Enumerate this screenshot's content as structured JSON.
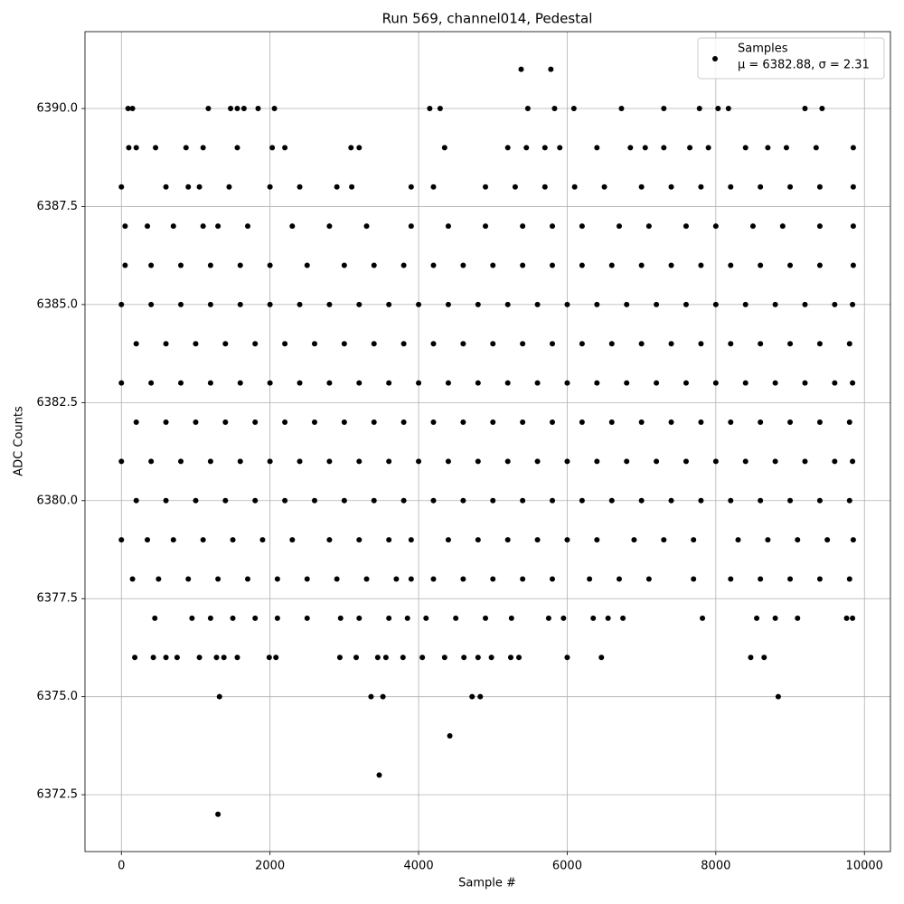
{
  "chart_data": {
    "type": "scatter",
    "title": "Run 569, channel014, Pedestal",
    "xlabel": "Sample #",
    "ylabel": "ADC Counts",
    "xlim": [
      -490,
      10350
    ],
    "ylim": [
      6371.05,
      6391.96
    ],
    "xticks": [
      0,
      2000,
      4000,
      6000,
      8000,
      10000
    ],
    "yticks": [
      6372.5,
      {
        "value": 6375,
        "label": "6375.0"
      },
      6377.5,
      {
        "value": 6380,
        "label": "6380.0"
      },
      6382.5,
      {
        "value": 6385,
        "label": "6385.0"
      },
      6387.5,
      {
        "value": 6390,
        "label": "6390.0"
      }
    ],
    "grid": true,
    "legend": "upper right",
    "legend_note": "μ = 6382.88, σ = 2.31",
    "series": [
      {
        "name": "Samples",
        "color": "#000000",
        "x": [
          5380,
          5780,
          90,
          150,
          1170,
          1470,
          1560,
          1650,
          1840,
          2060,
          4150,
          4290,
          5470,
          5830,
          6090,
          6730,
          7300,
          7780,
          8030,
          8170,
          9200,
          9430,
          100,
          200,
          460,
          870,
          1100,
          1560,
          2030,
          2200,
          3090,
          3200,
          4350,
          5200,
          5450,
          5700,
          5900,
          6400,
          6850,
          7050,
          7300,
          7650,
          7900,
          8400,
          8700,
          8950,
          9350,
          9850,
          0,
          600,
          900,
          1050,
          1450,
          2000,
          2400,
          2900,
          3100,
          3900,
          4200,
          4900,
          5300,
          5700,
          6100,
          6500,
          7000,
          7400,
          7800,
          8200,
          8600,
          9000,
          9400,
          9850,
          50,
          350,
          700,
          1100,
          1300,
          1700,
          2300,
          2800,
          3300,
          3900,
          4400,
          4900,
          5400,
          5800,
          6200,
          6700,
          7100,
          7600,
          8000,
          8500,
          8900,
          9400,
          9850,
          50,
          400,
          800,
          1200,
          1600,
          2000,
          2500,
          3000,
          3400,
          3800,
          4200,
          4600,
          5000,
          5400,
          5800,
          6200,
          6600,
          7000,
          7400,
          7800,
          8200,
          8600,
          9000,
          9400,
          9850,
          0,
          400,
          800,
          1200,
          1600,
          2000,
          2400,
          2800,
          3200,
          3600,
          4000,
          4400,
          4800,
          5200,
          5600,
          6000,
          6400,
          6800,
          7200,
          7600,
          8000,
          8400,
          8800,
          9200,
          9600,
          9840,
          200,
          600,
          1000,
          1400,
          1800,
          2200,
          2600,
          3000,
          3400,
          3800,
          4200,
          4600,
          5000,
          5400,
          5800,
          6200,
          6600,
          7000,
          7400,
          7800,
          8200,
          8600,
          9000,
          9400,
          9800,
          0,
          400,
          800,
          1200,
          1600,
          2000,
          2400,
          2800,
          3200,
          3600,
          4000,
          4400,
          4800,
          5200,
          5600,
          6000,
          6400,
          6800,
          7200,
          7600,
          8000,
          8400,
          8800,
          9200,
          9600,
          9840,
          200,
          600,
          1000,
          1400,
          1800,
          2200,
          2600,
          3000,
          3400,
          3800,
          4200,
          4600,
          5000,
          5400,
          5800,
          6200,
          6600,
          7000,
          7400,
          7800,
          8200,
          8600,
          9000,
          9400,
          9800,
          0,
          400,
          800,
          1200,
          1600,
          2000,
          2400,
          2800,
          3200,
          3600,
          4000,
          4400,
          4800,
          5200,
          5600,
          6000,
          6400,
          6800,
          7200,
          7600,
          8000,
          8400,
          8800,
          9200,
          9600,
          9840,
          200,
          600,
          1000,
          1400,
          1800,
          2200,
          2600,
          3000,
          3400,
          3800,
          4200,
          4600,
          5000,
          5400,
          5800,
          6200,
          6600,
          7000,
          7400,
          7800,
          8200,
          8600,
          9000,
          9400,
          9800,
          0,
          350,
          700,
          1100,
          1500,
          1900,
          2300,
          2800,
          3200,
          3600,
          3900,
          4400,
          4800,
          5200,
          5600,
          6000,
          6400,
          6900,
          7300,
          7700,
          8300,
          8700,
          9100,
          9500,
          9850,
          150,
          500,
          900,
          1300,
          1700,
          2100,
          2500,
          2900,
          3300,
          3700,
          3900,
          4200,
          4600,
          5000,
          5400,
          5800,
          6300,
          6700,
          7100,
          7700,
          8200,
          8600,
          9000,
          9400,
          9800,
          450,
          950,
          1200,
          1500,
          1800,
          2100,
          2500,
          2950,
          3200,
          3600,
          3850,
          4100,
          4500,
          4900,
          5250,
          5750,
          5950,
          6350,
          6550,
          6750,
          7820,
          8550,
          8800,
          9100,
          9760,
          9840,
          180,
          430,
          600,
          750,
          1050,
          1280,
          1380,
          1560,
          1990,
          2080,
          2940,
          3160,
          3450,
          3560,
          3790,
          4050,
          4350,
          4610,
          4800,
          4980,
          5240,
          5350,
          6000,
          6460,
          8470,
          8650,
          1320,
          3360,
          3520,
          4720,
          4830,
          8840,
          4420,
          3470,
          1300
        ],
        "values": [
          6391,
          6391,
          6390,
          6390,
          6390,
          6390,
          6390,
          6390,
          6390,
          6390,
          6390,
          6390,
          6390,
          6390,
          6390,
          6390,
          6390,
          6390,
          6390,
          6390,
          6390,
          6390,
          6389,
          6389,
          6389,
          6389,
          6389,
          6389,
          6389,
          6389,
          6389,
          6389,
          6389,
          6389,
          6389,
          6389,
          6389,
          6389,
          6389,
          6389,
          6389,
          6389,
          6389,
          6389,
          6389,
          6389,
          6389,
          6389,
          6388,
          6388,
          6388,
          6388,
          6388,
          6388,
          6388,
          6388,
          6388,
          6388,
          6388,
          6388,
          6388,
          6388,
          6388,
          6388,
          6388,
          6388,
          6388,
          6388,
          6388,
          6388,
          6388,
          6388,
          6387,
          6387,
          6387,
          6387,
          6387,
          6387,
          6387,
          6387,
          6387,
          6387,
          6387,
          6387,
          6387,
          6387,
          6387,
          6387,
          6387,
          6387,
          6387,
          6387,
          6387,
          6387,
          6387,
          6386,
          6386,
          6386,
          6386,
          6386,
          6386,
          6386,
          6386,
          6386,
          6386,
          6386,
          6386,
          6386,
          6386,
          6386,
          6386,
          6386,
          6386,
          6386,
          6386,
          6386,
          6386,
          6386,
          6386,
          6386,
          6385,
          6385,
          6385,
          6385,
          6385,
          6385,
          6385,
          6385,
          6385,
          6385,
          6385,
          6385,
          6385,
          6385,
          6385,
          6385,
          6385,
          6385,
          6385,
          6385,
          6385,
          6385,
          6385,
          6385,
          6385,
          6385,
          6384,
          6384,
          6384,
          6384,
          6384,
          6384,
          6384,
          6384,
          6384,
          6384,
          6384,
          6384,
          6384,
          6384,
          6384,
          6384,
          6384,
          6384,
          6384,
          6384,
          6384,
          6384,
          6384,
          6384,
          6384,
          6383,
          6383,
          6383,
          6383,
          6383,
          6383,
          6383,
          6383,
          6383,
          6383,
          6383,
          6383,
          6383,
          6383,
          6383,
          6383,
          6383,
          6383,
          6383,
          6383,
          6383,
          6383,
          6383,
          6383,
          6383,
          6383,
          6382,
          6382,
          6382,
          6382,
          6382,
          6382,
          6382,
          6382,
          6382,
          6382,
          6382,
          6382,
          6382,
          6382,
          6382,
          6382,
          6382,
          6382,
          6382,
          6382,
          6382,
          6382,
          6382,
          6382,
          6382,
          6381,
          6381,
          6381,
          6381,
          6381,
          6381,
          6381,
          6381,
          6381,
          6381,
          6381,
          6381,
          6381,
          6381,
          6381,
          6381,
          6381,
          6381,
          6381,
          6381,
          6381,
          6381,
          6381,
          6381,
          6381,
          6381,
          6380,
          6380,
          6380,
          6380,
          6380,
          6380,
          6380,
          6380,
          6380,
          6380,
          6380,
          6380,
          6380,
          6380,
          6380,
          6380,
          6380,
          6380,
          6380,
          6380,
          6380,
          6380,
          6380,
          6380,
          6380,
          6379,
          6379,
          6379,
          6379,
          6379,
          6379,
          6379,
          6379,
          6379,
          6379,
          6379,
          6379,
          6379,
          6379,
          6379,
          6379,
          6379,
          6379,
          6379,
          6379,
          6379,
          6379,
          6379,
          6379,
          6379,
          6378,
          6378,
          6378,
          6378,
          6378,
          6378,
          6378,
          6378,
          6378,
          6378,
          6378,
          6378,
          6378,
          6378,
          6378,
          6378,
          6378,
          6378,
          6378,
          6378,
          6378,
          6378,
          6378,
          6378,
          6378,
          6377,
          6377,
          6377,
          6377,
          6377,
          6377,
          6377,
          6377,
          6377,
          6377,
          6377,
          6377,
          6377,
          6377,
          6377,
          6377,
          6377,
          6377,
          6377,
          6377,
          6377,
          6377,
          6377,
          6377,
          6377,
          6377,
          6376,
          6376,
          6376,
          6376,
          6376,
          6376,
          6376,
          6376,
          6376,
          6376,
          6376,
          6376,
          6376,
          6376,
          6376,
          6376,
          6376,
          6376,
          6376,
          6376,
          6376,
          6376,
          6376,
          6376,
          6376,
          6376,
          6375,
          6375,
          6375,
          6375,
          6375,
          6375,
          6374,
          6373,
          6372
        ]
      }
    ]
  }
}
